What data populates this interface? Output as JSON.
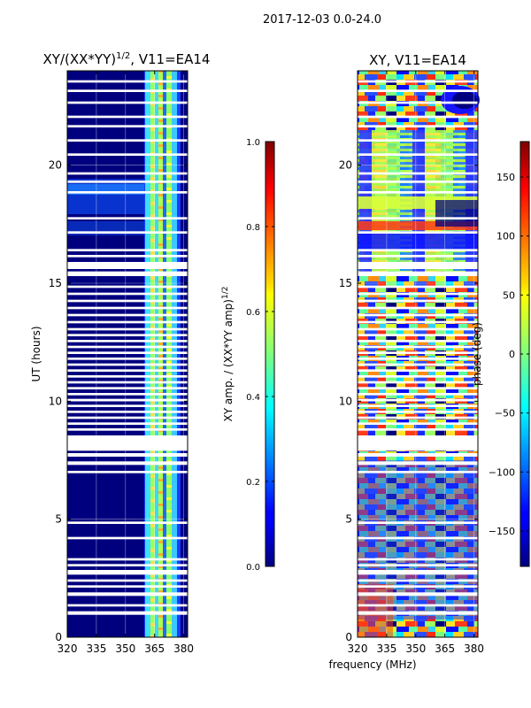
{
  "figure": {
    "suptitle": "2017-12-03 0.0-24.0",
    "shared_xlabel": "frequency (MHz)"
  },
  "chart_data": [
    {
      "type": "heatmap",
      "title": "XY/(XX*YY)",
      "title_exp": "1/2",
      "title_suffix": ", V11=EA14",
      "xlabel": "",
      "ylabel": "UT (hours)",
      "xlim": [
        320,
        382
      ],
      "ylim": [
        0,
        24
      ],
      "xticks": [
        320,
        335,
        350,
        365,
        380
      ],
      "yticks": [
        0,
        5,
        10,
        15,
        20
      ],
      "colormap": "jet",
      "background_color": "#00007f",
      "grid": true,
      "active_band_mhz": [
        364,
        379
      ],
      "colorbar": {
        "label": "XY amp. / (XX*YY amp)",
        "label_exp": "1/2",
        "range": [
          0.0,
          1.0
        ],
        "ticks": [
          "0.0",
          "0.2",
          "0.4",
          "0.6",
          "0.8",
          "1.0"
        ],
        "tick_values": [
          0.0,
          0.2,
          0.4,
          0.6,
          0.8,
          1.0
        ]
      }
    },
    {
      "type": "heatmap",
      "title": "XY, V11=EA14",
      "xlabel": "frequency (MHz)",
      "ylabel": "",
      "xlim": [
        320,
        382
      ],
      "ylim": [
        0,
        24
      ],
      "xticks": [
        320,
        335,
        350,
        365,
        380
      ],
      "yticks": [
        0,
        5,
        10,
        15,
        20
      ],
      "colormap": "jet",
      "grid": true,
      "colorbar": {
        "label": "phase (deg)",
        "range": [
          -180,
          180
        ],
        "ticks": [
          "−150",
          "−100",
          "−50",
          "0",
          "50",
          "100",
          "150"
        ],
        "tick_values": [
          -150,
          -100,
          -50,
          0,
          50,
          100,
          150
        ]
      }
    }
  ],
  "flagged_gaps_hours": [
    [
      0.95,
      1.1
    ],
    [
      1.3,
      1.4
    ],
    [
      1.75,
      1.9
    ],
    [
      2.1,
      2.2
    ],
    [
      2.35,
      2.45
    ],
    [
      2.65,
      2.85
    ],
    [
      3.0,
      3.1
    ],
    [
      3.25,
      3.35
    ],
    [
      4.15,
      4.25
    ],
    [
      4.8,
      4.9
    ],
    [
      6.95,
      7.05
    ],
    [
      7.3,
      7.45
    ],
    [
      7.65,
      7.8
    ],
    [
      7.9,
      8.55
    ],
    [
      8.75,
      8.85
    ],
    [
      9.0,
      9.1
    ],
    [
      9.25,
      9.35
    ],
    [
      9.5,
      9.6
    ],
    [
      9.75,
      9.85
    ],
    [
      10.0,
      10.1
    ],
    [
      10.25,
      10.35
    ],
    [
      10.5,
      10.6
    ],
    [
      10.75,
      10.85
    ],
    [
      11.0,
      11.1
    ],
    [
      11.25,
      11.35
    ],
    [
      11.5,
      11.6
    ],
    [
      11.75,
      11.85
    ],
    [
      12.0,
      12.1
    ],
    [
      12.25,
      12.35
    ],
    [
      12.5,
      12.6
    ],
    [
      12.75,
      12.85
    ],
    [
      13.0,
      13.1
    ],
    [
      13.3,
      13.4
    ],
    [
      13.6,
      13.7
    ],
    [
      13.9,
      14.0
    ],
    [
      14.2,
      14.3
    ],
    [
      14.5,
      14.6
    ],
    [
      14.8,
      14.9
    ],
    [
      15.3,
      15.5
    ],
    [
      15.6,
      15.9
    ],
    [
      16.1,
      16.2
    ],
    [
      16.35,
      16.45
    ],
    [
      17.1,
      17.2
    ],
    [
      17.7,
      17.8
    ],
    [
      18.8,
      18.9
    ],
    [
      19.25,
      19.35
    ],
    [
      19.6,
      19.7
    ],
    [
      20.4,
      20.5
    ],
    [
      21.0,
      21.1
    ],
    [
      21.6,
      21.7
    ],
    [
      22.0,
      22.1
    ],
    [
      22.6,
      22.7
    ],
    [
      23.1,
      23.2
    ],
    [
      23.5,
      23.6
    ]
  ]
}
